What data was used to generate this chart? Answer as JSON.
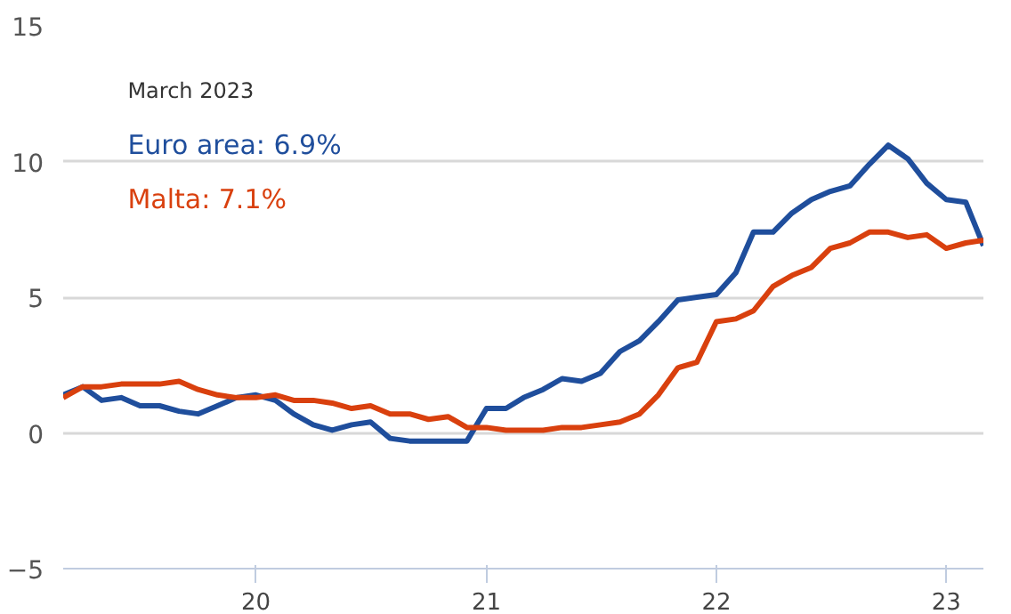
{
  "chart_data": {
    "type": "line",
    "x": [
      "2019-03",
      "2019-04",
      "2019-05",
      "2019-06",
      "2019-07",
      "2019-08",
      "2019-09",
      "2019-10",
      "2019-11",
      "2019-12",
      "2020-01",
      "2020-02",
      "2020-03",
      "2020-04",
      "2020-05",
      "2020-06",
      "2020-07",
      "2020-08",
      "2020-09",
      "2020-10",
      "2020-11",
      "2020-12",
      "2021-01",
      "2021-02",
      "2021-03",
      "2021-04",
      "2021-05",
      "2021-06",
      "2021-07",
      "2021-08",
      "2021-09",
      "2021-10",
      "2021-11",
      "2021-12",
      "2022-01",
      "2022-02",
      "2022-03",
      "2022-04",
      "2022-05",
      "2022-06",
      "2022-07",
      "2022-08",
      "2022-09",
      "2022-10",
      "2022-11",
      "2022-12",
      "2023-01",
      "2023-02",
      "2023-03"
    ],
    "series": [
      {
        "color": "#1f4e9c",
        "values": [
          1.4,
          1.7,
          1.2,
          1.3,
          1.0,
          1.0,
          0.8,
          0.7,
          1.0,
          1.3,
          1.4,
          1.2,
          0.7,
          0.3,
          0.1,
          0.3,
          0.4,
          -0.2,
          -0.3,
          -0.3,
          -0.3,
          -0.3,
          0.9,
          0.9,
          1.3,
          1.6,
          2.0,
          1.9,
          2.2,
          3.0,
          3.4,
          4.1,
          4.9,
          5.0,
          5.1,
          5.9,
          7.4,
          7.4,
          8.1,
          8.6,
          8.9,
          9.1,
          9.9,
          10.6,
          10.1,
          9.2,
          8.6,
          8.5,
          6.9
        ]
      },
      {
        "color": "#d9400e",
        "values": [
          1.3,
          1.7,
          1.7,
          1.8,
          1.8,
          1.8,
          1.9,
          1.6,
          1.4,
          1.3,
          1.3,
          1.4,
          1.2,
          1.2,
          1.1,
          0.9,
          1.0,
          0.7,
          0.7,
          0.5,
          0.6,
          0.2,
          0.2,
          0.1,
          0.1,
          0.1,
          0.2,
          0.2,
          0.3,
          0.4,
          0.7,
          1.4,
          2.4,
          2.6,
          4.1,
          4.2,
          4.5,
          5.4,
          5.8,
          6.1,
          6.8,
          7.0,
          7.4,
          7.4,
          7.2,
          7.3,
          6.8,
          7.0,
          7.1
        ]
      }
    ],
    "annotations": [
      "March 2023",
      "Euro area: 6.9%",
      "Malta: 7.1%"
    ],
    "xlim": [
      "2019-03",
      "2023-03"
    ],
    "xticks": [
      {
        "value": "2020-01",
        "label": "20"
      },
      {
        "value": "2021-01",
        "label": "21"
      },
      {
        "value": "2022-01",
        "label": "22"
      },
      {
        "value": "2023-01",
        "label": "23"
      }
    ],
    "ylim": [
      -5,
      15
    ],
    "yticks": [
      {
        "value": -5,
        "label": "−5"
      },
      0,
      5,
      10,
      15
    ],
    "grid": "y",
    "line_style": "solid"
  }
}
